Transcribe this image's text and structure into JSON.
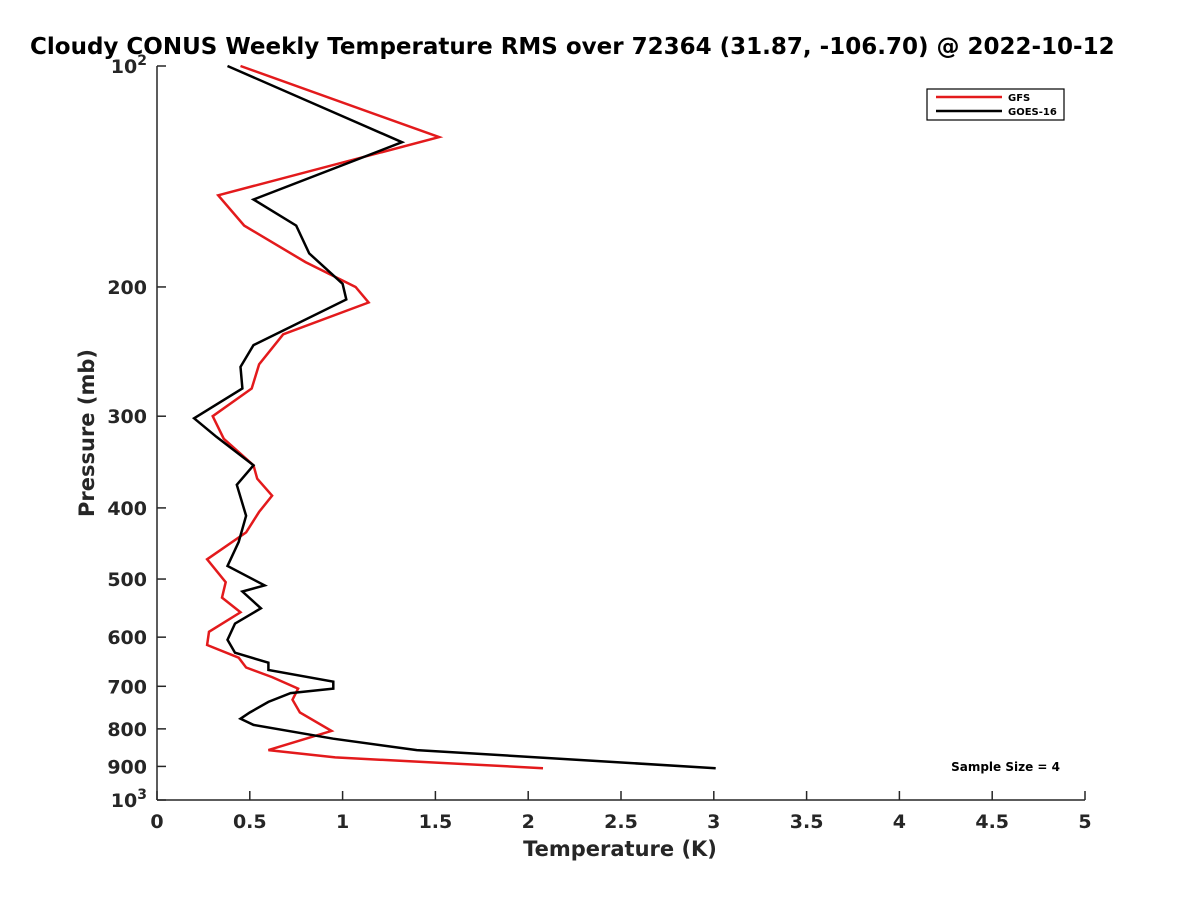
{
  "chart_data": {
    "type": "line",
    "title": "Cloudy CONUS Weekly Temperature RMS over 72364 (31.87, -106.70) @ 2022-10-12",
    "xlabel": "Temperature (K)",
    "ylabel": "Pressure (mb)",
    "xlim": [
      0,
      5
    ],
    "ylim": [
      100,
      1000
    ],
    "yscale": "log",
    "y_reversed": true,
    "grid": false,
    "legend_position": "top-right",
    "x_tick_labels": [
      "0",
      "0.5",
      "1",
      "1.5",
      "2",
      "2.5",
      "3",
      "3.5",
      "4",
      "4.5",
      "5"
    ],
    "x_tick_values": [
      0,
      0.5,
      1,
      1.5,
      2,
      2.5,
      3,
      3.5,
      4,
      4.5,
      5
    ],
    "y_ticks": [
      {
        "value": 100,
        "label": "10",
        "sup": "2"
      },
      {
        "value": 200,
        "label": "200",
        "sup": ""
      },
      {
        "value": 300,
        "label": "300",
        "sup": ""
      },
      {
        "value": 400,
        "label": "400",
        "sup": ""
      },
      {
        "value": 500,
        "label": "500",
        "sup": ""
      },
      {
        "value": 600,
        "label": "600",
        "sup": ""
      },
      {
        "value": 700,
        "label": "700",
        "sup": ""
      },
      {
        "value": 800,
        "label": "800",
        "sup": ""
      },
      {
        "value": 900,
        "label": "900",
        "sup": ""
      },
      {
        "value": 1000,
        "label": "10",
        "sup": "3"
      }
    ],
    "annotation": "Sample Size = 4",
    "series": [
      {
        "name": "GFS",
        "color": "#e31a1c",
        "points": [
          [
            0.45,
            100
          ],
          [
            1.52,
            125
          ],
          [
            0.33,
            150
          ],
          [
            0.47,
            165
          ],
          [
            0.8,
            185
          ],
          [
            1.07,
            200
          ],
          [
            1.14,
            210
          ],
          [
            0.68,
            232
          ],
          [
            0.55,
            255
          ],
          [
            0.51,
            275
          ],
          [
            0.3,
            300
          ],
          [
            0.36,
            322
          ],
          [
            0.52,
            350
          ],
          [
            0.54,
            365
          ],
          [
            0.62,
            385
          ],
          [
            0.55,
            405
          ],
          [
            0.48,
            432
          ],
          [
            0.27,
            470
          ],
          [
            0.37,
            505
          ],
          [
            0.35,
            530
          ],
          [
            0.45,
            555
          ],
          [
            0.28,
            590
          ],
          [
            0.27,
            615
          ],
          [
            0.44,
            640
          ],
          [
            0.48,
            660
          ],
          [
            0.62,
            680
          ],
          [
            0.76,
            705
          ],
          [
            0.73,
            730
          ],
          [
            0.77,
            760
          ],
          [
            0.94,
            805
          ],
          [
            0.6,
            855
          ],
          [
            0.96,
            875
          ],
          [
            2.08,
            905
          ]
        ]
      },
      {
        "name": "GOES-16",
        "color": "#000000",
        "points": [
          [
            0.38,
            100
          ],
          [
            1.32,
            127
          ],
          [
            0.52,
            152
          ],
          [
            0.75,
            165
          ],
          [
            0.82,
            180
          ],
          [
            1.0,
            198
          ],
          [
            1.02,
            208
          ],
          [
            0.52,
            240
          ],
          [
            0.45,
            257
          ],
          [
            0.46,
            275
          ],
          [
            0.2,
            302
          ],
          [
            0.32,
            320
          ],
          [
            0.52,
            350
          ],
          [
            0.43,
            372
          ],
          [
            0.48,
            410
          ],
          [
            0.44,
            445
          ],
          [
            0.38,
            480
          ],
          [
            0.58,
            510
          ],
          [
            0.46,
            520
          ],
          [
            0.56,
            548
          ],
          [
            0.42,
            575
          ],
          [
            0.38,
            605
          ],
          [
            0.42,
            630
          ],
          [
            0.6,
            650
          ],
          [
            0.6,
            665
          ],
          [
            0.95,
            690
          ],
          [
            0.95,
            705
          ],
          [
            0.72,
            715
          ],
          [
            0.6,
            735
          ],
          [
            0.5,
            760
          ],
          [
            0.45,
            775
          ],
          [
            0.52,
            790
          ],
          [
            0.95,
            825
          ],
          [
            1.4,
            855
          ],
          [
            3.01,
            905
          ]
        ]
      }
    ]
  }
}
